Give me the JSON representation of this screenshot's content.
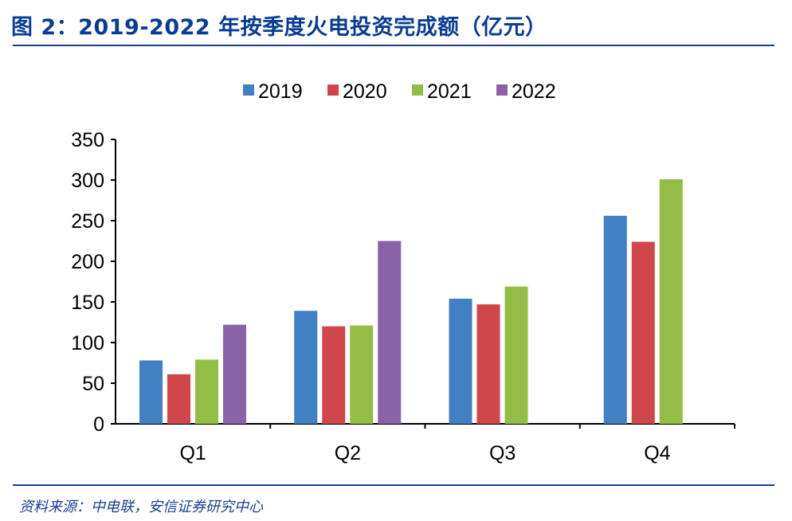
{
  "title": "图 2：2019-2022 年按季度火电投资完成额（亿元）",
  "source": "资料来源：中电联，安信证券研究中心",
  "chart_data": {
    "type": "bar",
    "categories": [
      "Q1",
      "Q2",
      "Q3",
      "Q4"
    ],
    "series": [
      {
        "name": "2019",
        "color": "#4180c2",
        "values": [
          78,
          139,
          154,
          256
        ]
      },
      {
        "name": "2020",
        "color": "#d0474b",
        "values": [
          61,
          120,
          147,
          224
        ]
      },
      {
        "name": "2021",
        "color": "#93bd47",
        "values": [
          79,
          121,
          169,
          301
        ]
      },
      {
        "name": "2022",
        "color": "#8a62a8",
        "values": [
          122,
          225,
          null,
          null
        ]
      }
    ],
    "ylim": [
      0,
      350
    ],
    "yticks": [
      0,
      50,
      100,
      150,
      200,
      250,
      300,
      350
    ],
    "grid": false,
    "legend": "top-center"
  }
}
